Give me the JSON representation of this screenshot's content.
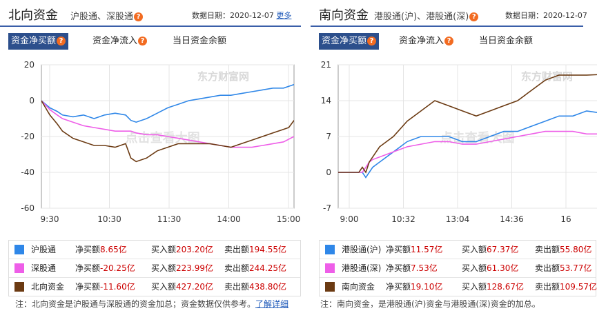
{
  "north": {
    "title": "北向资金",
    "subtitle": "沪股通、深股通",
    "date_label": "数据日期：2020-12-07",
    "more": "更多",
    "tabs": [
      "资金净买额",
      "资金净流入",
      "当日资金余额"
    ],
    "watermark": "东方财富网",
    "watermark2": "点击查看大图",
    "legend": [
      {
        "name": "沪股通",
        "net_label": "净买额",
        "net": "8.65亿",
        "buy_label": "买入额",
        "buy": "203.20亿",
        "sell_label": "卖出额",
        "sell": "194.55亿",
        "color": "#2f87e8"
      },
      {
        "name": "深股通",
        "net_label": "净买额",
        "net": "-20.25亿",
        "buy_label": "买入额",
        "buy": "223.99亿",
        "sell_label": "卖出额",
        "sell": "244.25亿",
        "color": "#ee5ee8"
      },
      {
        "name": "北向资金",
        "net_label": "净买额",
        "net": "-11.60亿",
        "buy_label": "买入额",
        "buy": "427.20亿",
        "sell_label": "卖出额",
        "sell": "438.80亿",
        "color": "#6b3a12"
      }
    ],
    "note": "注：北向资金是沪股通与深股通的资金加总；资金数据仅供参考。",
    "note_link": "了解详细"
  },
  "south": {
    "title": "南向资金",
    "subtitle": "港股通(沪)、港股通(深)",
    "date_label": "数据日期：2020-12-07",
    "tabs": [
      "资金净买额",
      "资金净流入",
      "当日资金余额"
    ],
    "watermark": "东方财富网",
    "watermark2": "点击查看大图",
    "legend": [
      {
        "name": "港股通(沪)",
        "net_label": "净买额",
        "net": "11.57亿",
        "buy_label": "买入额",
        "buy": "67.37亿",
        "sell_label": "卖出额",
        "sell": "55.80亿",
        "color": "#2f87e8"
      },
      {
        "name": "港股通(深)",
        "net_label": "净买额",
        "net": "7.53亿",
        "buy_label": "买入额",
        "buy": "61.30亿",
        "sell_label": "卖出额",
        "sell": "53.77亿",
        "color": "#ee5ee8"
      },
      {
        "name": "南向资金",
        "net_label": "净买额",
        "net": "19.10亿",
        "buy_label": "买入额",
        "buy": "128.67亿",
        "sell_label": "卖出额",
        "sell": "109.57亿",
        "color": "#6b3a12"
      }
    ],
    "note": "注：南向资金，是港股通(沪)资金与港股通(深)资金的加总。"
  },
  "chart_data": [
    {
      "type": "line",
      "xlabel": "",
      "ylabel": "",
      "x_ticks": [
        "9:30",
        "10:30",
        "11:30",
        "14:00",
        "15:00"
      ],
      "ylim": [
        -60,
        20
      ],
      "y_ticks": [
        20,
        0,
        -20,
        -40,
        -60
      ],
      "x_range": [
        0,
        240
      ],
      "grid": true,
      "series": [
        {
          "name": "沪股通",
          "color": "#2f87e8",
          "x": [
            0,
            8,
            15,
            20,
            30,
            40,
            50,
            60,
            70,
            80,
            85,
            90,
            100,
            110,
            120,
            130,
            140,
            150,
            160,
            170,
            180,
            190,
            200,
            210,
            220,
            230,
            240
          ],
          "y": [
            0,
            -4,
            -6,
            -8,
            -9,
            -8,
            -10,
            -8,
            -7,
            -8,
            -11,
            -12,
            -10,
            -7,
            -4,
            -2,
            0,
            1,
            2,
            3,
            3,
            4,
            5,
            6,
            7,
            7,
            9
          ]
        },
        {
          "name": "深股通",
          "color": "#ee5ee8",
          "x": [
            0,
            8,
            15,
            20,
            30,
            40,
            50,
            60,
            70,
            80,
            85,
            90,
            100,
            110,
            120,
            130,
            140,
            150,
            160,
            170,
            180,
            190,
            200,
            210,
            220,
            230,
            240
          ],
          "y": [
            0,
            -5,
            -8,
            -10,
            -12,
            -14,
            -15,
            -16,
            -17,
            -17,
            -17,
            -18,
            -19,
            -19,
            -20,
            -21,
            -22,
            -23,
            -24,
            -25,
            -26,
            -26,
            -26,
            -25,
            -24,
            -23,
            -20
          ]
        },
        {
          "name": "北向资金",
          "color": "#6b3a12",
          "x": [
            0,
            8,
            15,
            20,
            30,
            40,
            50,
            60,
            70,
            80,
            85,
            90,
            100,
            110,
            120,
            130,
            140,
            150,
            160,
            170,
            180,
            190,
            200,
            210,
            220,
            230,
            235,
            240
          ],
          "y": [
            0,
            -8,
            -13,
            -17,
            -21,
            -23,
            -25,
            -25,
            -26,
            -24,
            -32,
            -34,
            -32,
            -28,
            -26,
            -24,
            -24,
            -24,
            -24,
            -25,
            -26,
            -24,
            -22,
            -20,
            -18,
            -16,
            -15,
            -11
          ]
        }
      ]
    },
    {
      "type": "line",
      "xlabel": "",
      "ylabel": "",
      "x_ticks": [
        "9:00",
        "10:32",
        "13:04",
        "14:36",
        "16"
      ],
      "ylim": [
        -7,
        21
      ],
      "y_ticks": [
        21,
        14,
        7,
        0,
        -7
      ],
      "x_range": [
        0,
        420
      ],
      "grid": true,
      "series": [
        {
          "name": "港股通(沪)",
          "color": "#2f87e8",
          "x": [
            0,
            30,
            35,
            40,
            45,
            50,
            60,
            80,
            100,
            120,
            140,
            160,
            180,
            200,
            220,
            240,
            260,
            280,
            300,
            320,
            340,
            360,
            380
          ],
          "y": [
            0,
            0,
            0,
            -1,
            0,
            1,
            2,
            4,
            6,
            7,
            7,
            7,
            6,
            6,
            7,
            8,
            8,
            9,
            10,
            11,
            11,
            12,
            11.6
          ]
        },
        {
          "name": "港股通(深)",
          "color": "#ee5ee8",
          "x": [
            0,
            30,
            35,
            40,
            45,
            50,
            60,
            80,
            100,
            120,
            140,
            160,
            180,
            200,
            220,
            240,
            260,
            280,
            300,
            320,
            340,
            360,
            380
          ],
          "y": [
            0,
            0,
            0,
            1,
            2,
            2.5,
            3,
            4,
            5,
            5.5,
            6,
            6,
            5.5,
            5.5,
            6,
            6.5,
            7,
            7.5,
            8,
            8,
            8,
            7.5,
            7.5
          ]
        },
        {
          "name": "南向资金",
          "color": "#6b3a12",
          "x": [
            0,
            30,
            35,
            40,
            45,
            50,
            60,
            80,
            100,
            120,
            140,
            160,
            180,
            200,
            220,
            240,
            260,
            280,
            300,
            320,
            340,
            360,
            380
          ],
          "y": [
            0,
            0,
            1,
            0,
            2,
            3,
            5,
            7,
            10,
            12,
            14,
            13,
            12,
            11,
            12,
            13,
            14,
            16,
            18,
            19,
            19,
            19,
            19.1
          ]
        }
      ]
    }
  ]
}
